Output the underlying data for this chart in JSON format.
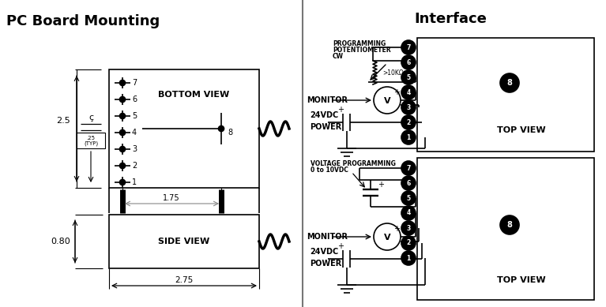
{
  "title_left": "PC Board Mounting",
  "title_right": "Interface",
  "bg_color": "#ffffff",
  "text_color": "#000000",
  "pin_labels_bv": [
    "7",
    "6",
    "5",
    "4",
    "3",
    "2",
    "1"
  ],
  "dim_25_typ_box": ".25\n(TYP)",
  "dim_25": "2.5",
  "dim_175": "1.75",
  "dim_080": "0.80",
  "dim_275": "2.75",
  "label_bottom_view": "BOTTOM VIEW",
  "label_side_view": "SIDE VIEW",
  "label_top_view": "TOP VIEW",
  "label_monitor": "MONITOR",
  "label_24vdc": "24VDC",
  "label_power": "POWER",
  "label_prog_pot": "PROGRAMMING\nPOTENTIOMETER\nCW",
  "label_10k": ">10KΩ",
  "label_volt_prog_line1": "VOLTAGE PROGRAMMING",
  "label_volt_prog_line2": "0 to 10VDC",
  "pin8_label": "8"
}
